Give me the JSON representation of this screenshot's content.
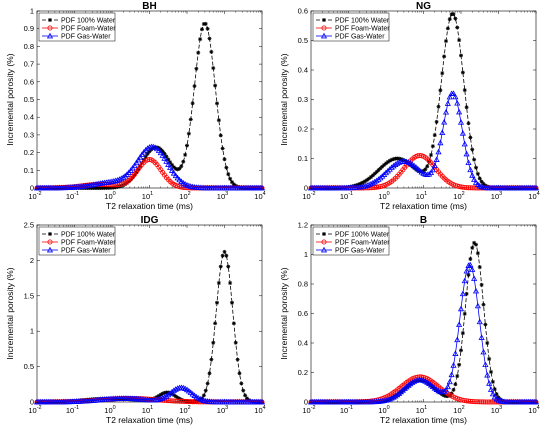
{
  "figure": {
    "background": "#ffffff"
  },
  "chart_data": [
    {
      "type": "line",
      "title": "BH",
      "xlabel": "T2 relaxation time (ms)",
      "ylabel": "Incremental porosity (%)",
      "xscale": "log",
      "xlim": [
        0.01,
        10000
      ],
      "ylim": [
        0,
        1
      ],
      "yticks": [
        0,
        0.1,
        0.2,
        0.3,
        0.4,
        0.5,
        0.6,
        0.7,
        0.8,
        0.9,
        1
      ],
      "ytick_labels": [
        "0",
        "0.1",
        "0.2",
        "0.3",
        "0.4",
        "0.5",
        "0.6",
        "0.7",
        "0.8",
        "0.9",
        "1"
      ],
      "legend_position": "top-left",
      "series": [
        {
          "name": "PDF 100% Water",
          "color": "#000000",
          "marker": "asterisk",
          "dash": "4,2",
          "peaks": [
            {
              "center": 15,
              "height": 0.23,
              "width": 0.38
            },
            {
              "center": 300,
              "height": 0.93,
              "width": 0.28
            }
          ]
        },
        {
          "name": "PDF Foam-Water",
          "color": "#ff0000",
          "marker": "circle",
          "dash": "",
          "peaks": [
            {
              "center": 10,
              "height": 0.16,
              "width": 0.32
            },
            {
              "center": 0.5,
              "height": 0.02,
              "width": 0.5
            }
          ]
        },
        {
          "name": "PDF Gas-Water",
          "color": "#0000ff",
          "marker": "triangle",
          "dash": "",
          "peaks": [
            {
              "center": 12,
              "height": 0.23,
              "width": 0.4
            },
            {
              "center": 1,
              "height": 0.03,
              "width": 0.5
            }
          ]
        }
      ]
    },
    {
      "type": "line",
      "title": "NG",
      "xlabel": "T2 relaxation time (ms)",
      "ylabel": "Incremental porosity (%)",
      "xscale": "log",
      "xlim": [
        0.01,
        10000
      ],
      "ylim": [
        0,
        0.6
      ],
      "yticks": [
        0,
        0.1,
        0.2,
        0.3,
        0.4,
        0.5,
        0.6
      ],
      "ytick_labels": [
        "0",
        "0.1",
        "0.2",
        "0.3",
        "0.4",
        "0.5",
        "0.6"
      ],
      "legend_position": "top-left",
      "series": [
        {
          "name": "PDF 100% Water",
          "color": "#000000",
          "marker": "asterisk",
          "dash": "4,2",
          "peaks": [
            {
              "center": 2,
              "height": 0.1,
              "width": 0.5
            },
            {
              "center": 60,
              "height": 0.59,
              "width": 0.3
            }
          ]
        },
        {
          "name": "PDF Foam-Water",
          "color": "#ff0000",
          "marker": "circle",
          "dash": "",
          "peaks": [
            {
              "center": 8,
              "height": 0.11,
              "width": 0.42
            }
          ]
        },
        {
          "name": "PDF Gas-Water",
          "color": "#0000ff",
          "marker": "triangle",
          "dash": "",
          "peaks": [
            {
              "center": 3,
              "height": 0.09,
              "width": 0.45
            },
            {
              "center": 60,
              "height": 0.32,
              "width": 0.26
            }
          ]
        }
      ]
    },
    {
      "type": "line",
      "title": "IDG",
      "xlabel": "T2 relaxation time (ms)",
      "ylabel": "Incremental porosity (%)",
      "xscale": "log",
      "xlim": [
        0.01,
        10000
      ],
      "ylim": [
        0,
        2.5
      ],
      "yticks": [
        0,
        0.5,
        1,
        1.5,
        2,
        2.5
      ],
      "ytick_labels": [
        "0",
        "0.5",
        "1",
        "1.5",
        "2",
        "2.5"
      ],
      "legend_position": "top-left",
      "series": [
        {
          "name": "PDF 100% Water",
          "color": "#000000",
          "marker": "asterisk",
          "dash": "4,2",
          "peaks": [
            {
              "center": 1,
              "height": 0.05,
              "width": 0.7
            },
            {
              "center": 30,
              "height": 0.13,
              "width": 0.22
            },
            {
              "center": 1000,
              "height": 2.12,
              "width": 0.22
            }
          ]
        },
        {
          "name": "PDF Foam-Water",
          "color": "#ff0000",
          "marker": "circle",
          "dash": "",
          "peaks": [
            {
              "center": 3,
              "height": 0.05,
              "width": 0.75
            }
          ]
        },
        {
          "name": "PDF Gas-Water",
          "color": "#0000ff",
          "marker": "triangle",
          "dash": "",
          "peaks": [
            {
              "center": 2,
              "height": 0.05,
              "width": 0.6
            },
            {
              "center": 70,
              "height": 0.2,
              "width": 0.28
            }
          ]
        }
      ]
    },
    {
      "type": "line",
      "title": "B",
      "xlabel": "T2 relaxation time (ms)",
      "ylabel": "Incremental porosity (%)",
      "xscale": "log",
      "xlim": [
        0.01,
        10000
      ],
      "ylim": [
        0,
        1.2
      ],
      "yticks": [
        0,
        0.2,
        0.4,
        0.6,
        0.8,
        1,
        1.2
      ],
      "ytick_labels": [
        "0",
        "0.2",
        "0.4",
        "0.6",
        "0.8",
        "1",
        "1.2"
      ],
      "legend_position": "top-left",
      "series": [
        {
          "name": "PDF 100% Water",
          "color": "#000000",
          "marker": "asterisk",
          "dash": "4,2",
          "peaks": [
            {
              "center": 8,
              "height": 0.15,
              "width": 0.4
            },
            {
              "center": 230,
              "height": 1.08,
              "width": 0.24
            }
          ]
        },
        {
          "name": "PDF Foam-Water",
          "color": "#ff0000",
          "marker": "circle",
          "dash": "",
          "peaks": [
            {
              "center": 8,
              "height": 0.17,
              "width": 0.5
            }
          ]
        },
        {
          "name": "PDF Gas-Water",
          "color": "#0000ff",
          "marker": "triangle",
          "dash": "",
          "peaks": [
            {
              "center": 8,
              "height": 0.15,
              "width": 0.4
            },
            {
              "center": 170,
              "height": 0.93,
              "width": 0.26
            }
          ]
        }
      ]
    }
  ]
}
